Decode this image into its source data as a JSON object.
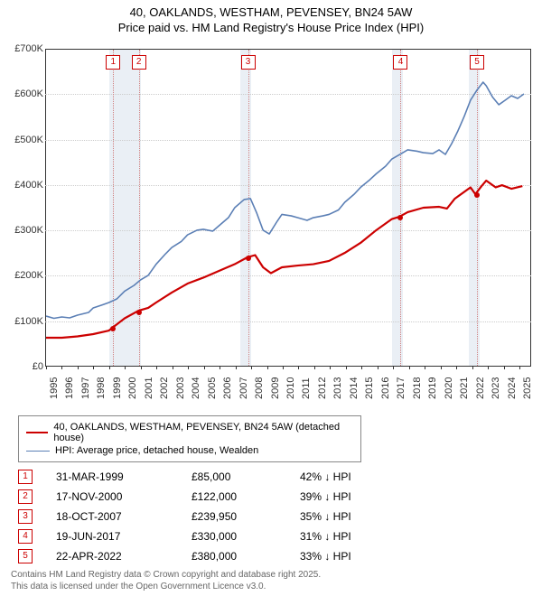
{
  "title": "40, OAKLANDS, WESTHAM, PEVENSEY, BN24 5AW",
  "subtitle": "Price paid vs. HM Land Registry's House Price Index (HPI)",
  "chart": {
    "type": "line",
    "background_color": "#ffffff",
    "grid_color": "#cccccc",
    "axis_color": "#333333",
    "label_fontsize": 11,
    "ylim": [
      0,
      700000
    ],
    "ytick_step": 100000,
    "yticks": [
      {
        "v": 0,
        "label": "£0"
      },
      {
        "v": 100000,
        "label": "£100K"
      },
      {
        "v": 200000,
        "label": "£200K"
      },
      {
        "v": 300000,
        "label": "£300K"
      },
      {
        "v": 400000,
        "label": "£400K"
      },
      {
        "v": 500000,
        "label": "£500K"
      },
      {
        "v": 600000,
        "label": "£600K"
      },
      {
        "v": 700000,
        "label": "£700K"
      }
    ],
    "xlim": [
      1995,
      2025.8
    ],
    "xticks": [
      1995,
      1996,
      1997,
      1998,
      1999,
      2000,
      2001,
      2002,
      2003,
      2004,
      2005,
      2006,
      2007,
      2008,
      2009,
      2010,
      2011,
      2012,
      2013,
      2014,
      2015,
      2016,
      2017,
      2018,
      2019,
      2020,
      2021,
      2022,
      2023,
      2024,
      2025
    ],
    "shaded_ranges": [
      {
        "x0": 1999.0,
        "x1": 2001.0,
        "color": "rgba(160,180,210,0.22)"
      },
      {
        "x0": 2007.3,
        "x1": 2008.0,
        "color": "rgba(160,180,210,0.22)"
      },
      {
        "x0": 2016.9,
        "x1": 2017.6,
        "color": "rgba(160,180,210,0.22)"
      },
      {
        "x0": 2021.8,
        "x1": 2022.5,
        "color": "rgba(160,180,210,0.22)"
      }
    ],
    "series": [
      {
        "id": "property",
        "label": "40, OAKLANDS, WESTHAM, PEVENSEY, BN24 5AW (detached house)",
        "color": "#cc0000",
        "line_width": 2.2,
        "points": [
          [
            1995.0,
            62000
          ],
          [
            1996.0,
            62000
          ],
          [
            1997.0,
            65000
          ],
          [
            1998.0,
            70000
          ],
          [
            1999.0,
            78000
          ],
          [
            1999.25,
            85000
          ],
          [
            2000.0,
            105000
          ],
          [
            2000.88,
            122000
          ],
          [
            2001.5,
            128000
          ],
          [
            2002.0,
            140000
          ],
          [
            2003.0,
            162000
          ],
          [
            2004.0,
            182000
          ],
          [
            2005.0,
            195000
          ],
          [
            2006.0,
            210000
          ],
          [
            2007.0,
            225000
          ],
          [
            2007.8,
            239950
          ],
          [
            2008.3,
            245000
          ],
          [
            2008.8,
            218000
          ],
          [
            2009.3,
            205000
          ],
          [
            2010.0,
            218000
          ],
          [
            2011.0,
            222000
          ],
          [
            2012.0,
            225000
          ],
          [
            2013.0,
            232000
          ],
          [
            2014.0,
            250000
          ],
          [
            2015.0,
            272000
          ],
          [
            2016.0,
            300000
          ],
          [
            2017.0,
            325000
          ],
          [
            2017.47,
            330000
          ],
          [
            2018.0,
            340000
          ],
          [
            2019.0,
            350000
          ],
          [
            2020.0,
            352000
          ],
          [
            2020.5,
            348000
          ],
          [
            2021.0,
            370000
          ],
          [
            2022.0,
            395000
          ],
          [
            2022.31,
            380000
          ],
          [
            2022.7,
            398000
          ],
          [
            2023.0,
            410000
          ],
          [
            2023.6,
            395000
          ],
          [
            2024.0,
            400000
          ],
          [
            2024.6,
            392000
          ],
          [
            2025.3,
            398000
          ]
        ]
      },
      {
        "id": "hpi",
        "label": "HPI: Average price, detached house, Wealden",
        "color": "#5b7fb5",
        "line_width": 1.6,
        "points": [
          [
            1995.0,
            110000
          ],
          [
            1995.5,
            105000
          ],
          [
            1996.0,
            108000
          ],
          [
            1996.5,
            106000
          ],
          [
            1997.0,
            112000
          ],
          [
            1997.7,
            118000
          ],
          [
            1998.0,
            128000
          ],
          [
            1998.6,
            135000
          ],
          [
            1999.0,
            140000
          ],
          [
            1999.5,
            148000
          ],
          [
            2000.0,
            165000
          ],
          [
            2000.6,
            178000
          ],
          [
            2001.0,
            190000
          ],
          [
            2001.5,
            200000
          ],
          [
            2002.0,
            225000
          ],
          [
            2002.6,
            248000
          ],
          [
            2003.0,
            262000
          ],
          [
            2003.6,
            275000
          ],
          [
            2004.0,
            290000
          ],
          [
            2004.6,
            300000
          ],
          [
            2005.0,
            302000
          ],
          [
            2005.6,
            298000
          ],
          [
            2006.0,
            310000
          ],
          [
            2006.6,
            328000
          ],
          [
            2007.0,
            350000
          ],
          [
            2007.6,
            368000
          ],
          [
            2008.0,
            370000
          ],
          [
            2008.4,
            338000
          ],
          [
            2008.8,
            300000
          ],
          [
            2009.2,
            292000
          ],
          [
            2009.7,
            320000
          ],
          [
            2010.0,
            335000
          ],
          [
            2010.6,
            332000
          ],
          [
            2011.0,
            328000
          ],
          [
            2011.6,
            322000
          ],
          [
            2012.0,
            328000
          ],
          [
            2012.6,
            332000
          ],
          [
            2013.0,
            335000
          ],
          [
            2013.6,
            345000
          ],
          [
            2014.0,
            362000
          ],
          [
            2014.6,
            380000
          ],
          [
            2015.0,
            395000
          ],
          [
            2015.6,
            412000
          ],
          [
            2016.0,
            425000
          ],
          [
            2016.6,
            442000
          ],
          [
            2017.0,
            458000
          ],
          [
            2017.6,
            470000
          ],
          [
            2018.0,
            478000
          ],
          [
            2018.6,
            475000
          ],
          [
            2019.0,
            472000
          ],
          [
            2019.6,
            470000
          ],
          [
            2020.0,
            478000
          ],
          [
            2020.4,
            468000
          ],
          [
            2020.8,
            492000
          ],
          [
            2021.2,
            520000
          ],
          [
            2021.6,
            552000
          ],
          [
            2022.0,
            588000
          ],
          [
            2022.4,
            610000
          ],
          [
            2022.8,
            628000
          ],
          [
            2023.0,
            620000
          ],
          [
            2023.4,
            595000
          ],
          [
            2023.8,
            578000
          ],
          [
            2024.2,
            588000
          ],
          [
            2024.6,
            598000
          ],
          [
            2025.0,
            592000
          ],
          [
            2025.4,
            602000
          ]
        ]
      }
    ],
    "markers": [
      {
        "n": "1",
        "x": 1999.25,
        "y": 85000,
        "color": "#cc0000"
      },
      {
        "n": "2",
        "x": 2000.88,
        "y": 122000,
        "color": "#cc0000"
      },
      {
        "n": "3",
        "x": 2007.8,
        "y": 239950,
        "color": "#cc0000"
      },
      {
        "n": "4",
        "x": 2017.47,
        "y": 330000,
        "color": "#cc0000"
      },
      {
        "n": "5",
        "x": 2022.31,
        "y": 380000,
        "color": "#cc0000"
      }
    ]
  },
  "legend": {
    "items": [
      {
        "color": "#cc0000",
        "width": 2.2,
        "label": "40, OAKLANDS, WESTHAM, PEVENSEY, BN24 5AW (detached house)"
      },
      {
        "color": "#5b7fb5",
        "width": 1.6,
        "label": "HPI: Average price, detached house, Wealden"
      }
    ]
  },
  "sales": [
    {
      "n": "1",
      "date": "31-MAR-1999",
      "price": "£85,000",
      "diff": "42% ↓ HPI",
      "color": "#cc0000"
    },
    {
      "n": "2",
      "date": "17-NOV-2000",
      "price": "£122,000",
      "diff": "39% ↓ HPI",
      "color": "#cc0000"
    },
    {
      "n": "3",
      "date": "18-OCT-2007",
      "price": "£239,950",
      "diff": "35% ↓ HPI",
      "color": "#cc0000"
    },
    {
      "n": "4",
      "date": "19-JUN-2017",
      "price": "£330,000",
      "diff": "31% ↓ HPI",
      "color": "#cc0000"
    },
    {
      "n": "5",
      "date": "22-APR-2022",
      "price": "£380,000",
      "diff": "33% ↓ HPI",
      "color": "#cc0000"
    }
  ],
  "footer": {
    "line1": "Contains HM Land Registry data © Crown copyright and database right 2025.",
    "line2": "This data is licensed under the Open Government Licence v3.0."
  }
}
